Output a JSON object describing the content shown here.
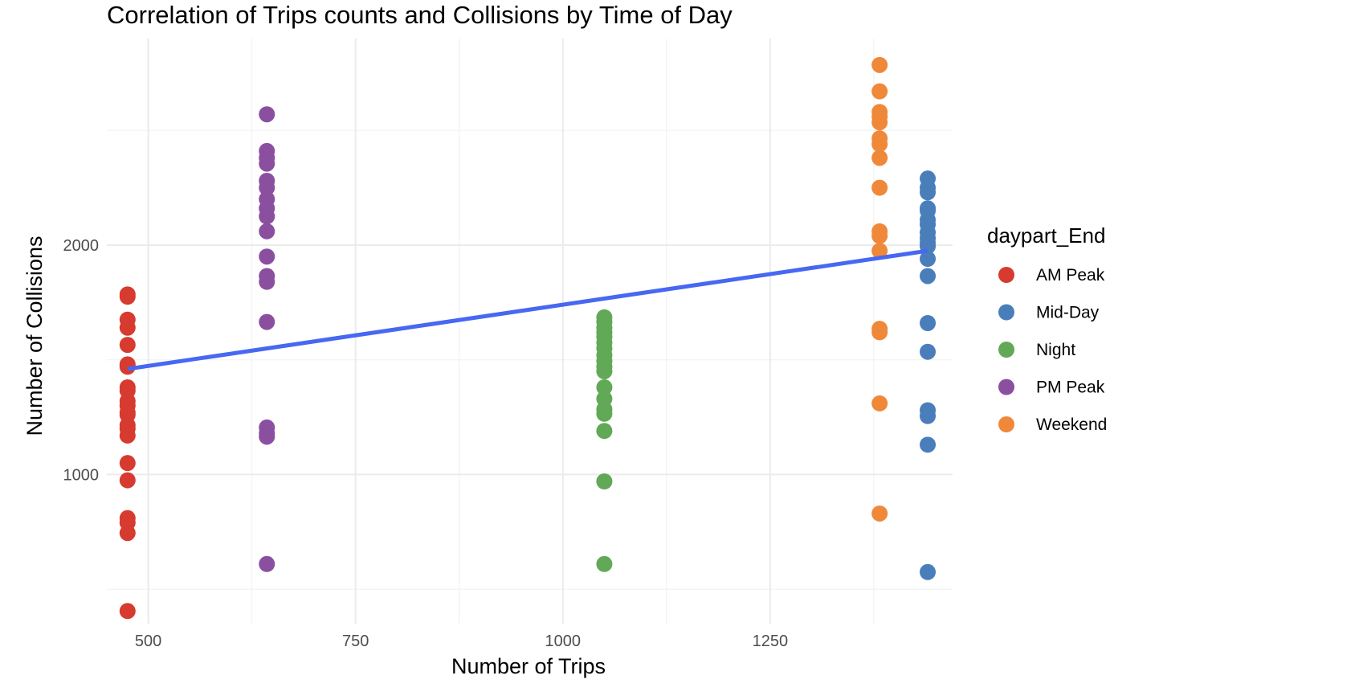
{
  "chart_data": {
    "type": "scatter",
    "title": "Correlation of Trips counts and Collisions by Time of Day",
    "xlabel": "Number of Trips",
    "ylabel": "Number of Collisions",
    "xlim": [
      450,
      1470
    ],
    "ylim": [
      350,
      2900
    ],
    "x_ticks": [
      500,
      750,
      1000,
      1250
    ],
    "y_ticks": [
      1000,
      2000
    ],
    "grid": true,
    "legend": {
      "title": "daypart_End",
      "position": "right"
    },
    "series": [
      {
        "name": "AM Peak",
        "color": "#d73a2f",
        "x": 475,
        "values": [
          1785,
          1775,
          1675,
          1640,
          1565,
          1480,
          1470,
          1380,
          1365,
          1320,
          1300,
          1270,
          1260,
          1215,
          1200,
          1170,
          1050,
          975,
          810,
          790,
          745,
          405
        ]
      },
      {
        "name": "Mid-Day",
        "color": "#4a7ebb",
        "x": 1440,
        "values": [
          2290,
          2250,
          2230,
          2160,
          2150,
          2110,
          2090,
          2055,
          2030,
          2010,
          1995,
          1940,
          1865,
          1660,
          1535,
          1280,
          1255,
          1130,
          575
        ]
      },
      {
        "name": "Night",
        "color": "#61a956",
        "x": 1050,
        "values": [
          1685,
          1665,
          1640,
          1620,
          1600,
          1575,
          1550,
          1520,
          1495,
          1470,
          1450,
          1380,
          1330,
          1285,
          1265,
          1190,
          970,
          610
        ]
      },
      {
        "name": "PM Peak",
        "color": "#8b4f9f",
        "x": 643,
        "values": [
          2570,
          2410,
          2380,
          2355,
          2280,
          2250,
          2200,
          2160,
          2125,
          2060,
          1950,
          1865,
          1840,
          1665,
          1205,
          1180,
          1165,
          610
        ]
      },
      {
        "name": "Weekend",
        "color": "#f0883a",
        "x": 1382,
        "values": [
          2785,
          2670,
          2580,
          2560,
          2535,
          2465,
          2440,
          2380,
          2250,
          2060,
          2040,
          1975,
          1635,
          1620,
          1310,
          830
        ]
      }
    ],
    "trend_line": {
      "color": "#4668f2",
      "x": [
        475,
        1440
      ],
      "y": [
        1460,
        1975
      ]
    }
  }
}
